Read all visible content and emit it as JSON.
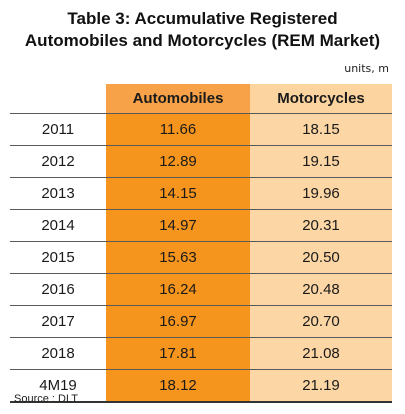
{
  "title_line1": "Table 3: Accumulative Registered",
  "title_line2": "Automobiles and Motorcycles (REM Market)",
  "units": "units, m",
  "source": "Source : DLT",
  "chart_data": {
    "type": "table",
    "title": "Table 3: Accumulative Registered Automobiles and Motorcycles (REM Market)",
    "columns": [
      "",
      "Automobiles",
      "Motorcycles"
    ],
    "categories": [
      "2011",
      "2012",
      "2013",
      "2014",
      "2015",
      "2016",
      "2017",
      "2018",
      "4M19"
    ],
    "series": [
      {
        "name": "Automobiles",
        "values": [
          "11.66",
          "12.89",
          "14.15",
          "14.97",
          "15.63",
          "16.24",
          "16.97",
          "17.81",
          "18.12"
        ]
      },
      {
        "name": "Motorcycles",
        "values": [
          "18.15",
          "19.15",
          "19.96",
          "20.31",
          "20.50",
          "20.48",
          "20.70",
          "21.08",
          "21.19"
        ]
      }
    ],
    "colors": {
      "automobiles_header": "#f7a148",
      "automobiles_cells": "#f6951e",
      "motorcycles_header": "#fbd49f",
      "motorcycles_cells": "#fcd6a4"
    }
  }
}
